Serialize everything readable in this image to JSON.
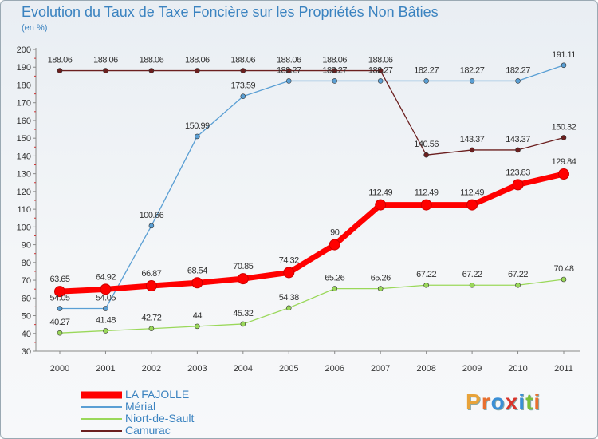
{
  "title": "Evolution du Taux de Taxe Foncière sur les Propriétés Non Bâties",
  "subtitle": "(en %)",
  "brand": {
    "letters": [
      "P",
      "r",
      "o",
      "x",
      "i",
      "t",
      "i"
    ],
    "colors": [
      "#e8a33a",
      "#e8702f",
      "#3a8fd6",
      "#d9342b",
      "#3a8fd6",
      "#7bbf3a",
      "#e8702f"
    ]
  },
  "chart_data": {
    "type": "line",
    "title": "Evolution du Taux de Taxe Foncière sur les Propriétés Non Bâties",
    "ylabel": "(en %)",
    "xlabel": "",
    "categories": [
      "2000",
      "2001",
      "2002",
      "2003",
      "2004",
      "2005",
      "2006",
      "2007",
      "2008",
      "2009",
      "2010",
      "2011"
    ],
    "ylim": [
      30,
      200
    ],
    "yticks": [
      30,
      40,
      50,
      60,
      70,
      80,
      90,
      100,
      110,
      120,
      130,
      140,
      150,
      160,
      170,
      180,
      190,
      200
    ],
    "grid": "none",
    "legend": "bottom-left",
    "series": [
      {
        "name": "LA FAJOLLE",
        "color": "#ff0000",
        "emphasis": true,
        "values": [
          63.65,
          64.92,
          66.87,
          68.54,
          70.85,
          74.32,
          90,
          112.49,
          112.49,
          112.49,
          123.83,
          129.84
        ],
        "labels": [
          "63.65",
          "64.92",
          "66.87",
          "68.54",
          "70.85",
          "74.32",
          "90",
          "112.49",
          "112.49",
          "112.49",
          "123.83",
          "129.84"
        ]
      },
      {
        "name": "Mérial",
        "color": "#5a9fd4",
        "values": [
          54.05,
          54.05,
          100.66,
          150.99,
          173.59,
          182.27,
          182.27,
          182.27,
          182.27,
          182.27,
          182.27,
          191.11
        ],
        "labels": [
          "54.05",
          "54.05",
          "100.66",
          "150.99",
          "173.59",
          "182.27",
          "182.27",
          "182.27",
          "182.27",
          "182.27",
          "182.27",
          "191.11"
        ]
      },
      {
        "name": "Niort-de-Sault",
        "color": "#9ad85a",
        "values": [
          40.27,
          41.48,
          42.72,
          44,
          45.32,
          54.38,
          65.26,
          65.26,
          67.22,
          67.22,
          67.22,
          70.48
        ],
        "labels": [
          "40.27",
          "41.48",
          "42.72",
          "44",
          "45.32",
          "54.38",
          "65.26",
          "65.26",
          "67.22",
          "67.22",
          "67.22",
          "70.48"
        ]
      },
      {
        "name": "Camurac",
        "color": "#6b1f1f",
        "values": [
          188.06,
          188.06,
          188.06,
          188.06,
          188.06,
          188.06,
          188.06,
          188.06,
          140.56,
          143.37,
          143.37,
          150.32
        ],
        "labels": [
          "188.06",
          "188.06",
          "188.06",
          "188.06",
          "188.06",
          "188.06",
          "188.06",
          "188.06",
          "140.56",
          "143.37",
          "143.37",
          "150.32"
        ]
      }
    ]
  }
}
